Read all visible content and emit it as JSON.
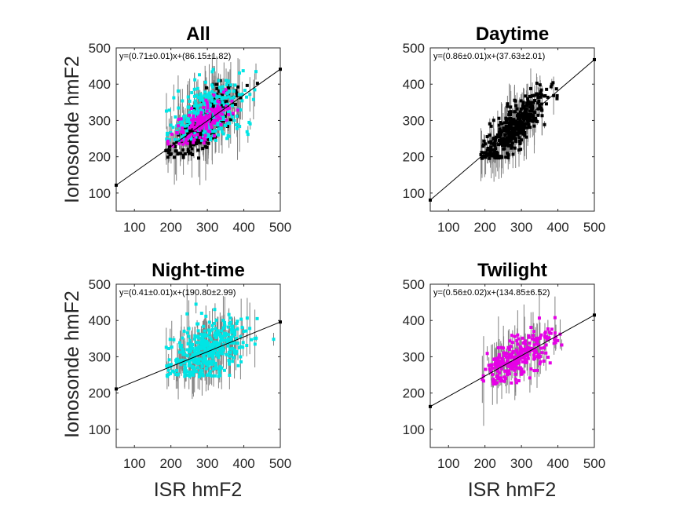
{
  "figure": {
    "ylabel": "Ionosonde hmF2",
    "xlabel": "ISR hmF2"
  },
  "colors": {
    "all_night": "#00e5e5",
    "twilight": "#e600e6",
    "daytime": "#000000",
    "errorbar": "#808080",
    "fit_line": "#000000"
  },
  "chart_data": [
    {
      "type": "scatter",
      "title": "All",
      "equation": "y=(0.71±0.01)x+(86.15±1.82)",
      "slope": 0.71,
      "intercept": 86.15,
      "xlim": [
        50,
        500
      ],
      "ylim": [
        50,
        500
      ],
      "xticks": [
        100,
        200,
        300,
        400,
        500
      ],
      "yticks": [
        100,
        200,
        300,
        400,
        500
      ],
      "grid": false,
      "series": [
        {
          "color": "#000000",
          "x_center": 290,
          "x_spread": 45,
          "x_min": 185,
          "slope": 0.86,
          "intercept": 37.63,
          "scatter": 30,
          "floor": 195,
          "n": 260
        },
        {
          "color": "#00e5e5",
          "x_center": 300,
          "x_spread": 55,
          "x_min": 185,
          "slope": 0.41,
          "intercept": 190.8,
          "scatter": 45,
          "floor": 245,
          "n": 300
        },
        {
          "color": "#e600e6",
          "x_center": 285,
          "x_spread": 40,
          "x_min": 190,
          "slope": 0.56,
          "intercept": 134.85,
          "scatter": 25,
          "floor": 230,
          "n": 150
        }
      ]
    },
    {
      "type": "scatter",
      "title": "Daytime",
      "equation": "y=(0.86±0.01)x+(37.63±2.01)",
      "slope": 0.86,
      "intercept": 37.63,
      "xlim": [
        50,
        500
      ],
      "ylim": [
        50,
        500
      ],
      "xticks": [
        100,
        200,
        300,
        400,
        500
      ],
      "yticks": [
        100,
        200,
        300,
        400,
        500
      ],
      "grid": false,
      "series": [
        {
          "color": "#000000",
          "x_center": 280,
          "x_spread": 45,
          "x_min": 185,
          "slope": 0.86,
          "intercept": 37.63,
          "scatter": 28,
          "floor": 195,
          "n": 420
        }
      ]
    },
    {
      "type": "scatter",
      "title": "Night-time",
      "equation": "y=(0.41±0.01)x+(190.80±2.99)",
      "slope": 0.41,
      "intercept": 190.8,
      "xlim": [
        50,
        500
      ],
      "ylim": [
        50,
        500
      ],
      "xticks": [
        100,
        200,
        300,
        400,
        500
      ],
      "yticks": [
        100,
        200,
        300,
        400,
        500
      ],
      "grid": false,
      "series": [
        {
          "color": "#00e5e5",
          "x_center": 300,
          "x_spread": 55,
          "x_min": 185,
          "slope": 0.41,
          "intercept": 190.8,
          "scatter": 40,
          "floor": 245,
          "n": 420
        }
      ]
    },
    {
      "type": "scatter",
      "title": "Twilight",
      "equation": "y=(0.56±0.02)x+(134.85±6.52)",
      "slope": 0.56,
      "intercept": 134.85,
      "xlim": [
        50,
        500
      ],
      "ylim": [
        50,
        500
      ],
      "xticks": [
        100,
        200,
        300,
        400,
        500
      ],
      "yticks": [
        100,
        200,
        300,
        400,
        500
      ],
      "grid": false,
      "series": [
        {
          "color": "#e600e6",
          "x_center": 290,
          "x_spread": 45,
          "x_min": 190,
          "slope": 0.56,
          "intercept": 134.85,
          "scatter": 28,
          "floor": 225,
          "n": 260
        }
      ]
    }
  ]
}
